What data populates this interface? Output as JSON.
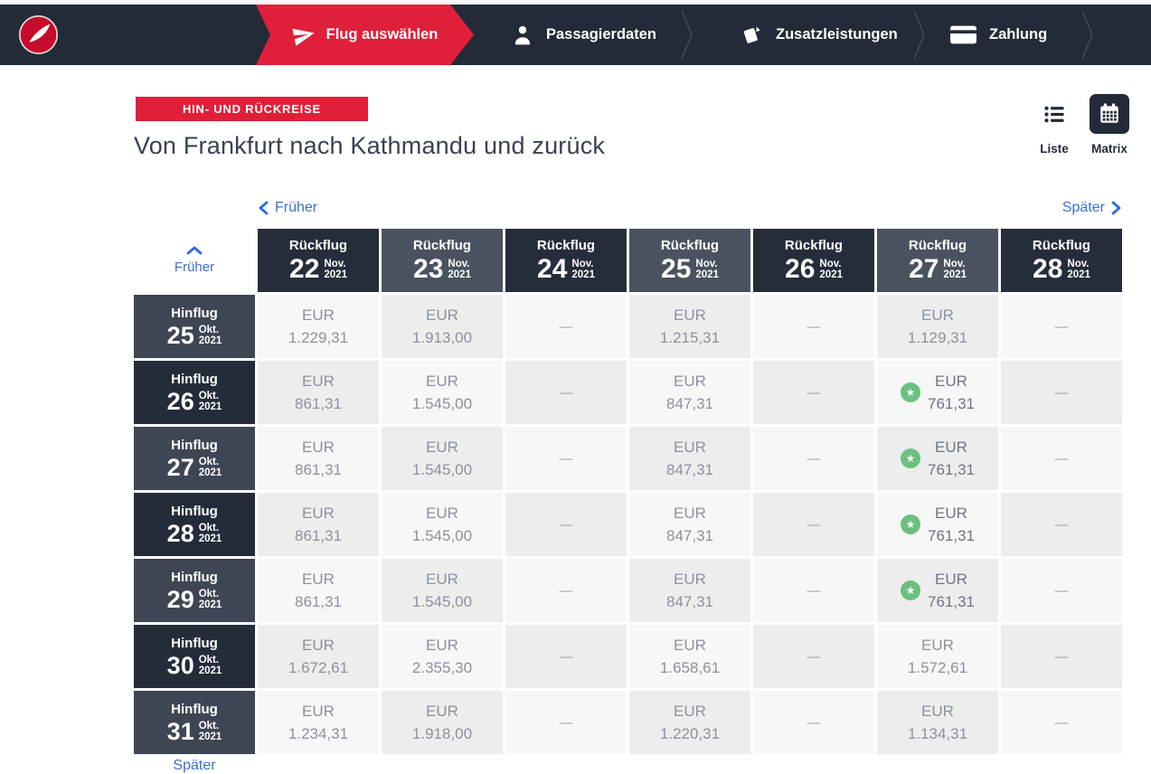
{
  "nav": {
    "steps": [
      {
        "label": "Flug auswählen",
        "icon": "plane-icon",
        "active": true
      },
      {
        "label": "Passagierdaten",
        "icon": "person-icon",
        "active": false
      },
      {
        "label": "Zusatzleistungen",
        "icon": "tickets-icon",
        "active": false
      },
      {
        "label": "Zahlung",
        "icon": "credit-card-icon",
        "active": false
      }
    ]
  },
  "header": {
    "trip_badge": "HIN- UND RÜCKREISE",
    "title": "Von Frankfurt nach Kathmandu und zurück",
    "view_toggle": {
      "list_label": "Liste",
      "matrix_label": "Matrix",
      "active": "Matrix"
    }
  },
  "matrix": {
    "earlier_link": "Früher",
    "later_link": "Später",
    "corner_earlier": "Früher",
    "bottom_later": "Später",
    "currency": "EUR",
    "empty_symbol": "—",
    "column_header_prefix": "Rückflug",
    "row_header_prefix": "Hinflug",
    "columns": [
      {
        "day": "22",
        "month": "Nov.",
        "year": "2021"
      },
      {
        "day": "23",
        "month": "Nov.",
        "year": "2021"
      },
      {
        "day": "24",
        "month": "Nov.",
        "year": "2021"
      },
      {
        "day": "25",
        "month": "Nov.",
        "year": "2021"
      },
      {
        "day": "26",
        "month": "Nov.",
        "year": "2021"
      },
      {
        "day": "27",
        "month": "Nov.",
        "year": "2021"
      },
      {
        "day": "28",
        "month": "Nov.",
        "year": "2021"
      }
    ],
    "rows": [
      {
        "day": "25",
        "month": "Okt.",
        "year": "2021",
        "cells": [
          {
            "price": "1.229,31"
          },
          {
            "price": "1.913,00"
          },
          {},
          {
            "price": "1.215,31"
          },
          {},
          {
            "price": "1.129,31"
          },
          {}
        ]
      },
      {
        "day": "26",
        "month": "Okt.",
        "year": "2021",
        "cells": [
          {
            "price": "861,31"
          },
          {
            "price": "1.545,00"
          },
          {},
          {
            "price": "847,31"
          },
          {},
          {
            "price": "761,31",
            "best": true
          },
          {}
        ]
      },
      {
        "day": "27",
        "month": "Okt.",
        "year": "2021",
        "cells": [
          {
            "price": "861,31"
          },
          {
            "price": "1.545,00"
          },
          {},
          {
            "price": "847,31"
          },
          {},
          {
            "price": "761,31",
            "best": true
          },
          {}
        ]
      },
      {
        "day": "28",
        "month": "Okt.",
        "year": "2021",
        "cells": [
          {
            "price": "861,31"
          },
          {
            "price": "1.545,00"
          },
          {},
          {
            "price": "847,31"
          },
          {},
          {
            "price": "761,31",
            "best": true
          },
          {}
        ]
      },
      {
        "day": "29",
        "month": "Okt.",
        "year": "2021",
        "cells": [
          {
            "price": "861,31"
          },
          {
            "price": "1.545,00"
          },
          {},
          {
            "price": "847,31"
          },
          {},
          {
            "price": "761,31",
            "best": true
          },
          {}
        ]
      },
      {
        "day": "30",
        "month": "Okt.",
        "year": "2021",
        "cells": [
          {
            "price": "1.672,61"
          },
          {
            "price": "2.355,30"
          },
          {},
          {
            "price": "1.658,61"
          },
          {},
          {
            "price": "1.572,61"
          },
          {}
        ]
      },
      {
        "day": "31",
        "month": "Okt.",
        "year": "2021",
        "cells": [
          {
            "price": "1.234,31"
          },
          {
            "price": "1.918,00"
          },
          {},
          {
            "price": "1.220,31"
          },
          {},
          {
            "price": "1.134,31"
          },
          {}
        ]
      }
    ]
  },
  "colors": {
    "brand_red": "#e0203a",
    "logo_red": "#c60b2b",
    "navbar_navy": "#232b38",
    "header_cell_dark": "#252d3b",
    "header_cell_light": "#4a5260",
    "row_header_light": "#3e4654",
    "row_header_dark": "#242c3a",
    "cell_light": "#f6f7f7",
    "cell_dark": "#ededee",
    "price_text": "#8b929d",
    "link_blue": "#3a70cb",
    "best_price_green": "#6cc07f"
  }
}
